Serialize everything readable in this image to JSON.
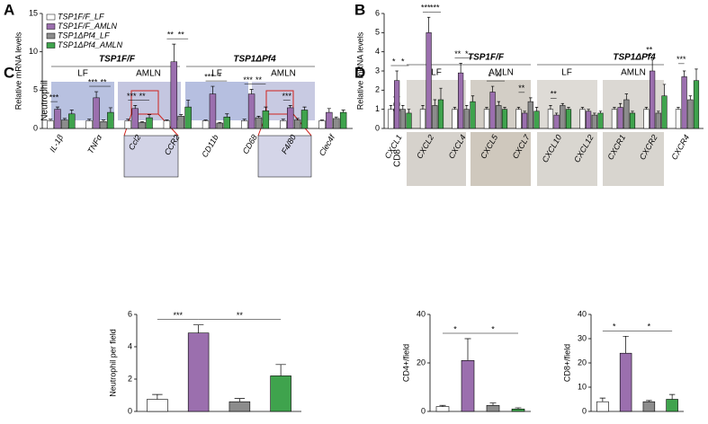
{
  "panels": {
    "labels": [
      "A",
      "B",
      "C",
      "D"
    ],
    "c_header": [
      "TSP1F/F",
      "TSP1ΔPf4"
    ],
    "c_groups": [
      "LF",
      "AMLN",
      "LF",
      "AMLN"
    ],
    "c_row": "Neutrophil",
    "d_header": [
      "TSP1F/F",
      "TSP1ΔPf4"
    ],
    "d_groups": [
      "LF",
      "AMLN",
      "LF",
      "AMLN"
    ],
    "d_rows": [
      "CD4",
      "CD8"
    ]
  },
  "chart_data": [
    {
      "type": "bar",
      "ylabel": "Relative mRNA levels",
      "ylim": [
        0,
        15
      ],
      "yticks": [
        0,
        5,
        10,
        15
      ],
      "legend": "upper left",
      "categories": [
        "IL-1β",
        "TNFα",
        "Ccl2",
        "CCR2",
        "CD11b",
        "CD68",
        "F4/80",
        "Clec4f"
      ],
      "series": [
        {
          "name": "TSP1F/F_LF",
          "color": "#ffffff",
          "values": [
            1.0,
            1.0,
            1.0,
            1.0,
            1.0,
            1.0,
            1.0,
            1.0
          ],
          "errors": [
            0.2,
            0.2,
            0.2,
            0.1,
            0.1,
            0.2,
            0.2,
            0.1
          ]
        },
        {
          "name": "TSP1F/F_AMLN",
          "color": "#9b6fae",
          "values": [
            2.5,
            4.0,
            2.6,
            8.7,
            4.5,
            4.5,
            2.7,
            2.1
          ],
          "errors": [
            0.3,
            0.8,
            0.4,
            2.3,
            1.0,
            0.6,
            0.3,
            0.5
          ]
        },
        {
          "name": "TSP1ΔPf4_LF",
          "color": "#8c8c8c",
          "values": [
            1.1,
            0.9,
            0.8,
            1.6,
            0.7,
            1.4,
            1.1,
            1.3
          ],
          "errors": [
            0.2,
            0.2,
            0.1,
            0.2,
            0.1,
            0.2,
            0.2,
            0.2
          ]
        },
        {
          "name": "TSP1ΔPf4_AMLN",
          "color": "#3fa34d",
          "values": [
            1.9,
            2.1,
            1.4,
            2.8,
            1.5,
            2.3,
            2.4,
            2.1
          ],
          "errors": [
            0.5,
            0.6,
            0.4,
            0.9,
            0.4,
            0.5,
            0.4,
            0.3
          ]
        }
      ],
      "significance": [
        [
          "***",
          null
        ],
        [
          "***",
          "**"
        ],
        [
          "***",
          "**"
        ],
        [
          "**",
          "**"
        ],
        [
          "***",
          "*"
        ],
        [
          "***",
          "**"
        ],
        [
          "***",
          null
        ],
        [
          null,
          null
        ]
      ]
    },
    {
      "type": "bar",
      "ylabel": "Relative mRNA levels",
      "ylim": [
        0,
        6
      ],
      "yticks": [
        0,
        1,
        2,
        3,
        4,
        5,
        6
      ],
      "categories": [
        "CXCL1",
        "CXCL2",
        "CXCL4",
        "CXCL5",
        "CXCL7",
        "CXCL10",
        "CXCL12",
        "CXCR1",
        "CXCR2",
        "CXCR4"
      ],
      "series": [
        {
          "name": "TSP1F/F_LF",
          "color": "#ffffff",
          "values": [
            1.0,
            1.0,
            1.0,
            1.0,
            1.0,
            1.0,
            1.0,
            1.0,
            1.0,
            1.0
          ],
          "errors": [
            0.2,
            0.2,
            0.1,
            0.1,
            0.1,
            0.2,
            0.1,
            0.1,
            0.1,
            0.1
          ]
        },
        {
          "name": "TSP1F/F_AMLN",
          "color": "#9b6fae",
          "values": [
            2.5,
            5.0,
            2.9,
            1.9,
            0.8,
            0.7,
            0.9,
            1.1,
            3.0,
            2.7
          ],
          "errors": [
            0.5,
            0.8,
            0.5,
            0.3,
            0.1,
            0.1,
            0.1,
            0.2,
            0.6,
            0.3
          ]
        },
        {
          "name": "TSP1ΔPf4_LF",
          "color": "#8c8c8c",
          "values": [
            1.0,
            1.2,
            1.0,
            1.2,
            1.4,
            1.2,
            0.7,
            1.5,
            0.8,
            1.5
          ],
          "errors": [
            0.2,
            0.3,
            0.2,
            0.2,
            0.2,
            0.1,
            0.1,
            0.3,
            0.1,
            0.2
          ]
        },
        {
          "name": "TSP1ΔPf4_AMLN",
          "color": "#3fa34d",
          "values": [
            0.8,
            1.5,
            1.4,
            1.0,
            0.9,
            1.0,
            0.8,
            0.8,
            1.7,
            2.5
          ],
          "errors": [
            0.2,
            0.6,
            0.3,
            0.1,
            0.2,
            0.1,
            0.1,
            0.1,
            0.6,
            0.6
          ]
        }
      ],
      "significance": [
        [
          "*",
          "*"
        ],
        [
          "***",
          "***"
        ],
        [
          "**",
          "*"
        ],
        [
          "*",
          "**"
        ],
        [
          "**",
          null
        ],
        [
          "**",
          null
        ],
        [
          null,
          null
        ],
        [
          null,
          null
        ],
        [
          "**",
          null
        ],
        [
          "***",
          null
        ]
      ]
    },
    {
      "type": "bar",
      "ylabel": "Neutrophil per field",
      "ylim": [
        0,
        6
      ],
      "yticks": [
        0,
        2,
        4,
        6
      ],
      "values": [
        0.75,
        4.85,
        0.6,
        2.2
      ],
      "errors": [
        0.3,
        0.5,
        0.2,
        0.7
      ],
      "colors": [
        "#ffffff",
        "#9b6fae",
        "#8c8c8c",
        "#3fa34d"
      ],
      "significance": [
        "***",
        "**"
      ]
    },
    {
      "type": "bar",
      "ylabel": "CD4+/field",
      "ylim": [
        0,
        40
      ],
      "yticks": [
        0,
        20,
        40
      ],
      "values": [
        2,
        21,
        2.5,
        1
      ],
      "errors": [
        0.5,
        9,
        1,
        0.5
      ],
      "colors": [
        "#ffffff",
        "#9b6fae",
        "#8c8c8c",
        "#3fa34d"
      ],
      "significance": [
        "*",
        "*"
      ]
    },
    {
      "type": "bar",
      "ylabel": "CD8+/field",
      "ylim": [
        0,
        40
      ],
      "yticks": [
        0,
        10,
        20,
        30,
        40
      ],
      "values": [
        4,
        24,
        4,
        5
      ],
      "errors": [
        1.5,
        7,
        0.5,
        2
      ],
      "colors": [
        "#ffffff",
        "#9b6fae",
        "#8c8c8c",
        "#3fa34d"
      ],
      "significance": [
        "*",
        "*"
      ]
    }
  ]
}
